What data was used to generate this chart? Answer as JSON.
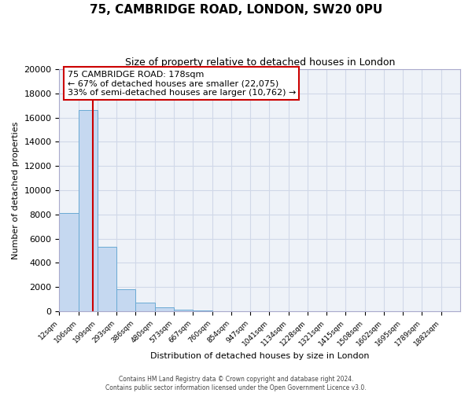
{
  "title": "75, CAMBRIDGE ROAD, LONDON, SW20 0PU",
  "subtitle": "Size of property relative to detached houses in London",
  "xlabel": "Distribution of detached houses by size in London",
  "ylabel": "Number of detached properties",
  "bar_labels": [
    "12sqm",
    "106sqm",
    "199sqm",
    "293sqm",
    "386sqm",
    "480sqm",
    "573sqm",
    "667sqm",
    "760sqm",
    "854sqm",
    "947sqm",
    "1041sqm",
    "1134sqm",
    "1228sqm",
    "1321sqm",
    "1415sqm",
    "1508sqm",
    "1602sqm",
    "1695sqm",
    "1789sqm",
    "1882sqm"
  ],
  "bar_values": [
    8100,
    16600,
    5300,
    1800,
    700,
    320,
    150,
    100,
    0,
    0,
    0,
    0,
    0,
    0,
    0,
    0,
    0,
    0,
    0,
    0,
    0
  ],
  "bar_color": "#c5d8f0",
  "bar_edge_color": "#6aaad4",
  "vline_x_index": 1.95,
  "ylim": [
    0,
    20000
  ],
  "yticks": [
    0,
    2000,
    4000,
    6000,
    8000,
    10000,
    12000,
    14000,
    16000,
    18000,
    20000
  ],
  "annotation_title": "75 CAMBRIDGE ROAD: 178sqm",
  "annotation_line1": "← 67% of detached houses are smaller (22,075)",
  "annotation_line2": "33% of semi-detached houses are larger (10,762) →",
  "vline_color": "#cc0000",
  "grid_color": "#d0d8e8",
  "bg_color": "#eef2f8",
  "footer1": "Contains HM Land Registry data © Crown copyright and database right 2024.",
  "footer2": "Contains public sector information licensed under the Open Government Licence v3.0."
}
